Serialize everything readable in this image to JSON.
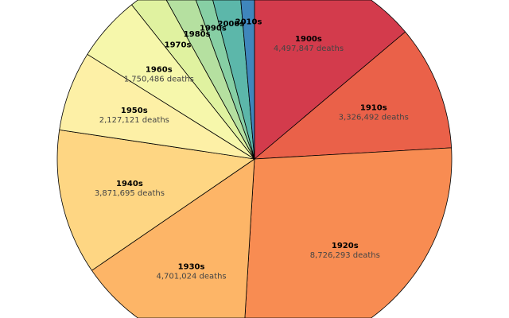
{
  "chart_data": {
    "type": "pie",
    "start": "top",
    "direction": "clockwise",
    "value_suffix": " deaths",
    "categories": [
      "1900s",
      "1910s",
      "1920s",
      "1930s",
      "1940s",
      "1950s",
      "1960s",
      "1970s",
      "1980s",
      "1990s",
      "2000s",
      "2010s"
    ],
    "values": [
      4497847,
      3326492,
      8726293,
      4701024,
      3871695,
      2127121,
      1750486,
      860000,
      790000,
      500000,
      880000,
      445000
    ],
    "value_labels": [
      "4,497,847 deaths",
      "3,326,492 deaths",
      "8,726,293 deaths",
      "4,701,024 deaths",
      "3,871,695 deaths",
      "2,127,121 deaths",
      "1,750,486 deaths",
      "",
      "",
      "",
      "",
      ""
    ],
    "colors": [
      "#d33b4c",
      "#ea6149",
      "#f88c52",
      "#fdb567",
      "#fed683",
      "#fdf0a6",
      "#f6f7ab",
      "#e0f2a0",
      "#b5e0a0",
      "#87cfa4",
      "#5cb7aa",
      "#3f86bc"
    ],
    "edge_color": "#000000"
  }
}
